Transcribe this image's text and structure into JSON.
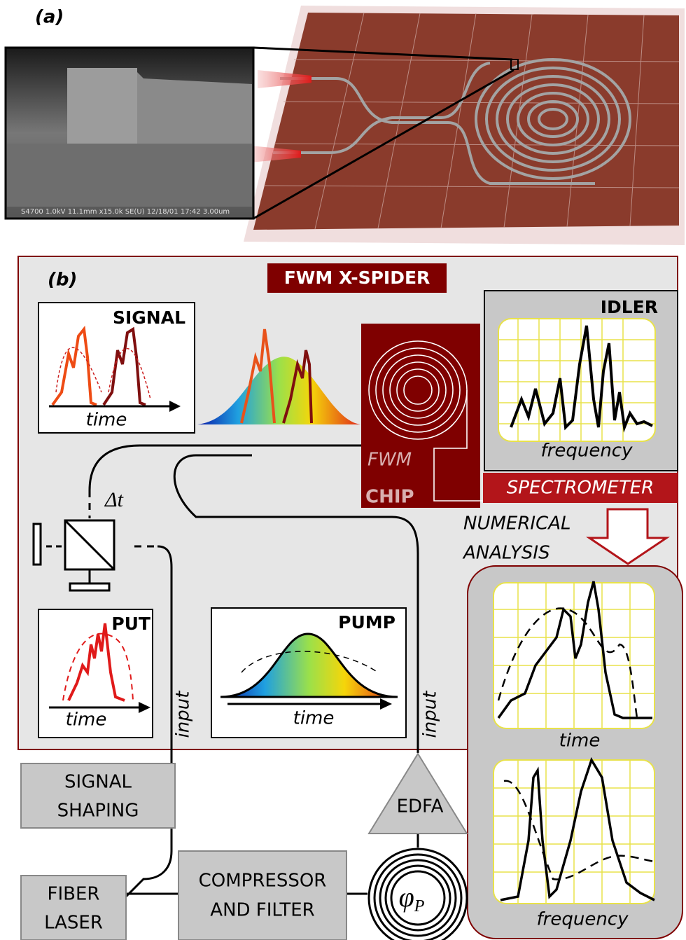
{
  "panel_a": {
    "label": "(a)",
    "sem_caption": "S4700 1.0kV 11.1mm x15.0k SE(U) 12/18/01 17:42      3.00um"
  },
  "panel_b": {
    "label": "(b)",
    "title": "FWM X-SPIDER",
    "signal": {
      "label": "SIGNAL",
      "axis": "time"
    },
    "idler": {
      "label": "IDLER",
      "axis": "frequency"
    },
    "chip": {
      "line1": "FWM",
      "line2": "CHIP"
    },
    "spectrometer": "SPECTROMETER",
    "analysis": [
      "NUMERICAL",
      "ANALYSIS"
    ],
    "delay": "Δt",
    "put": {
      "label": "PUT",
      "axis": "time"
    },
    "pump": {
      "label": "PUMP",
      "axis": "time"
    },
    "inputs": [
      "input",
      "input"
    ]
  },
  "results": {
    "time_axis": "time",
    "frequency_axis": "frequency"
  },
  "blocks": {
    "signal_shaping": [
      "SIGNAL",
      "SHAPING"
    ],
    "edfa": "EDFA",
    "fiber_laser": [
      "FIBER",
      "LASER"
    ],
    "compressor": [
      "COMPRESSOR",
      "AND FILTER"
    ],
    "phase": "φ",
    "phase_sub": "P"
  }
}
